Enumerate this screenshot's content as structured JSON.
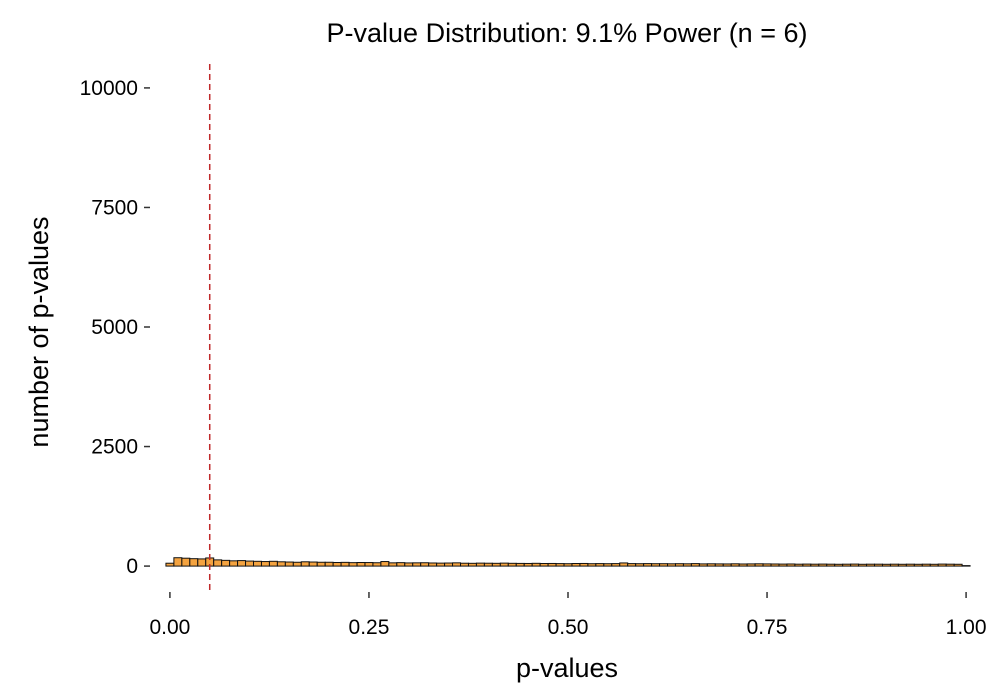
{
  "chart_data": {
    "type": "bar",
    "title": "P-value Distribution: 9.1% Power (n = 6)",
    "xlabel": "p-values",
    "ylabel": "number of p-values",
    "xlim": [
      -0.0225,
      1.0225
    ],
    "ylim": [
      -500,
      10500
    ],
    "x_ticks": [
      {
        "value": 0,
        "label": "0.00"
      },
      {
        "value": 0.25,
        "label": "0.25"
      },
      {
        "value": 0.5,
        "label": "0.50"
      },
      {
        "value": 0.75,
        "label": "0.75"
      },
      {
        "value": 1,
        "label": "1.00"
      }
    ],
    "y_ticks": [
      {
        "value": 0,
        "label": "0"
      },
      {
        "value": 2500,
        "label": "2500"
      },
      {
        "value": 5000,
        "label": "5000"
      },
      {
        "value": 7500,
        "label": "7500"
      },
      {
        "value": 10000,
        "label": "10000"
      }
    ],
    "bin_width": 0.01,
    "x_start": -0.005,
    "values": [
      60,
      175,
      165,
      155,
      150,
      170,
      130,
      120,
      110,
      115,
      105,
      100,
      95,
      100,
      90,
      85,
      80,
      90,
      85,
      80,
      80,
      75,
      78,
      72,
      75,
      74,
      70,
      95,
      68,
      72,
      66,
      68,
      70,
      65,
      62,
      64,
      68,
      60,
      58,
      62,
      60,
      58,
      62,
      58,
      56,
      55,
      58,
      54,
      55,
      52,
      50,
      54,
      55,
      50,
      52,
      50,
      52,
      66,
      52,
      50,
      52,
      50,
      50,
      48,
      50,
      48,
      52,
      46,
      48,
      46,
      45,
      48,
      44,
      46,
      48,
      46,
      44,
      42,
      44,
      40,
      42,
      40,
      42,
      40,
      38,
      40,
      42,
      38,
      40,
      40,
      38,
      40,
      38,
      40,
      38,
      40,
      38,
      42,
      40,
      38,
      10
    ],
    "bar_fill": "#f4a340",
    "bar_stroke": "#111111",
    "reference_line": {
      "x": 0.05,
      "color": "#c0282a",
      "style": "dashed"
    },
    "grid": false,
    "legend": "none"
  }
}
